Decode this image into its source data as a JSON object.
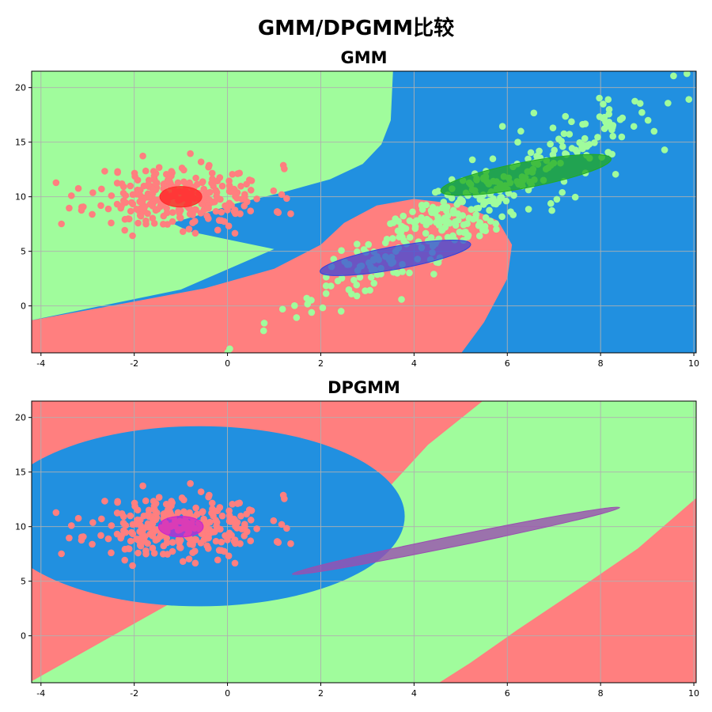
{
  "suptitle": "GMM/DPGMM比较",
  "colors": {
    "red_region": "#ff7f7f",
    "green_region": "#a0fc9c",
    "blue_region": "#2190e0",
    "red_points": "#ff7f7f",
    "green_points": "#a0fc9c",
    "grid": "#b0b0b0"
  },
  "chart_data": [
    {
      "type": "scatter",
      "title": "GMM",
      "xlim": [
        -4.2,
        10.05
      ],
      "ylim": [
        -4.3,
        21.5
      ],
      "xticks": [
        -4,
        -2,
        0,
        2,
        4,
        6,
        8,
        10
      ],
      "yticks": [
        0,
        5,
        10,
        15,
        20
      ],
      "grid": true,
      "clusters": [
        {
          "color": "red",
          "center": [
            -1.0,
            10.0
          ],
          "spread": [
            0.95,
            1.45
          ],
          "rho": 0.0,
          "n": 280,
          "seed": 11
        },
        {
          "color": "green",
          "center": [
            5.0,
            8.6
          ],
          "spread": [
            1.85,
            4.6
          ],
          "rho": 0.93,
          "n": 360,
          "seed": 29
        }
      ],
      "regions": [
        "red-center-left",
        "blue-right",
        "green-upper-left"
      ],
      "ellipses": [
        {
          "color": "#ff2a2a",
          "center": [
            -1.0,
            10.0
          ],
          "rx": 0.45,
          "ry": 0.95,
          "angle": 0,
          "opacity": 0.85
        },
        {
          "color": "#3344dd",
          "center": [
            3.6,
            4.4
          ],
          "rx": 2.05,
          "ry": 0.38,
          "angle": 38,
          "opacity": 0.72
        },
        {
          "color": "#22aa22",
          "center": [
            6.4,
            12.0
          ],
          "rx": 2.35,
          "ry": 0.42,
          "angle": 39,
          "opacity": 0.75
        }
      ]
    },
    {
      "type": "scatter",
      "title": "DPGMM",
      "xlim": [
        -4.2,
        10.05
      ],
      "ylim": [
        -4.3,
        21.5
      ],
      "xticks": [
        -4,
        -2,
        0,
        2,
        4,
        6,
        8,
        10
      ],
      "yticks": [
        0,
        5,
        10,
        15,
        20
      ],
      "grid": true,
      "clusters": [
        {
          "color": "red",
          "center": [
            -1.0,
            10.0
          ],
          "spread": [
            0.95,
            1.45
          ],
          "rho": 0.0,
          "n": 280,
          "seed": 11
        }
      ],
      "regions": [
        "red-background",
        "blue-left-ellipse",
        "green-diagonal-band"
      ],
      "ellipses": [
        {
          "color": "#cc22cc",
          "center": [
            -1.0,
            10.0
          ],
          "rx": 0.48,
          "ry": 0.95,
          "angle": 0,
          "opacity": 0.72
        },
        {
          "color": "#9a4fb0",
          "center": [
            4.9,
            8.7
          ],
          "rx": 4.65,
          "ry": 0.17,
          "angle": 41,
          "opacity": 0.8
        }
      ]
    }
  ]
}
